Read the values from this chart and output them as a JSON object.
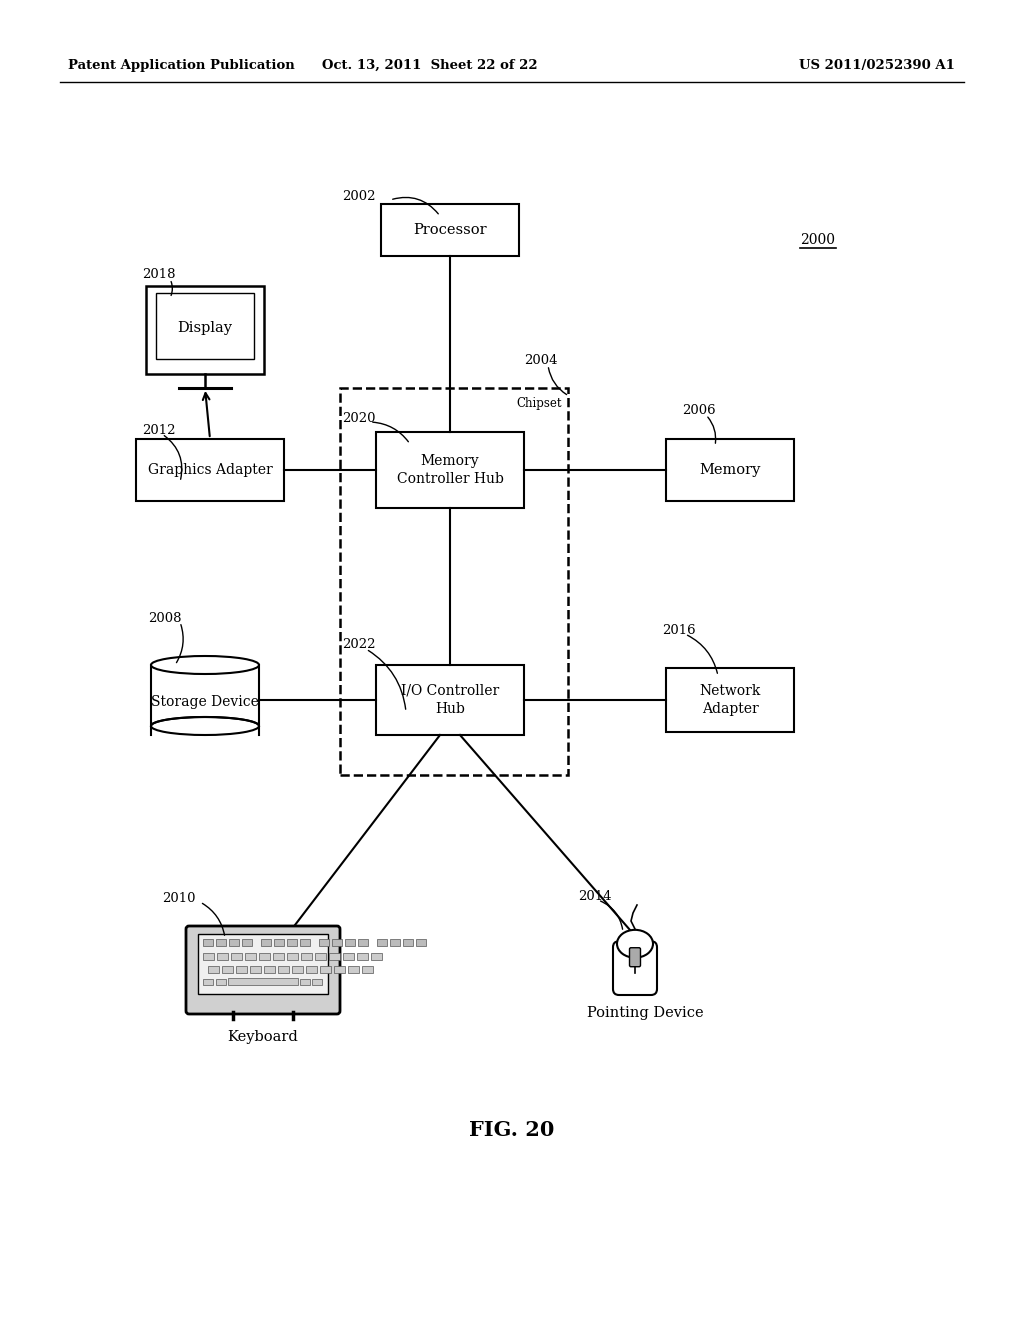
{
  "title_left": "Patent Application Publication",
  "title_mid": "Oct. 13, 2011  Sheet 22 of 22",
  "title_right": "US 2011/0252390 A1",
  "fig_label": "FIG. 20",
  "ref_2000": "2000",
  "ref_2002": "2002",
  "ref_2004": "2004",
  "ref_2006": "2006",
  "ref_2008": "2008",
  "ref_2010": "2010",
  "ref_2012": "2012",
  "ref_2014": "2014",
  "ref_2016": "2016",
  "ref_2018": "2018",
  "ref_2020": "2020",
  "ref_2022": "2022",
  "chipset_label": "Chipset",
  "processor_label": "Processor",
  "mch_label": "Memory\nController Hub",
  "ioh_label": "I/O Controller\nHub",
  "memory_label": "Memory",
  "graphics_label": "Graphics Adapter",
  "storage_label": "Storage Device",
  "network_label": "Network\nAdapter",
  "display_label": "Display",
  "keyboard_label": "Keyboard",
  "pointing_label": "Pointing Device",
  "bg_color": "#ffffff",
  "line_color": "#000000",
  "text_color": "#000000"
}
